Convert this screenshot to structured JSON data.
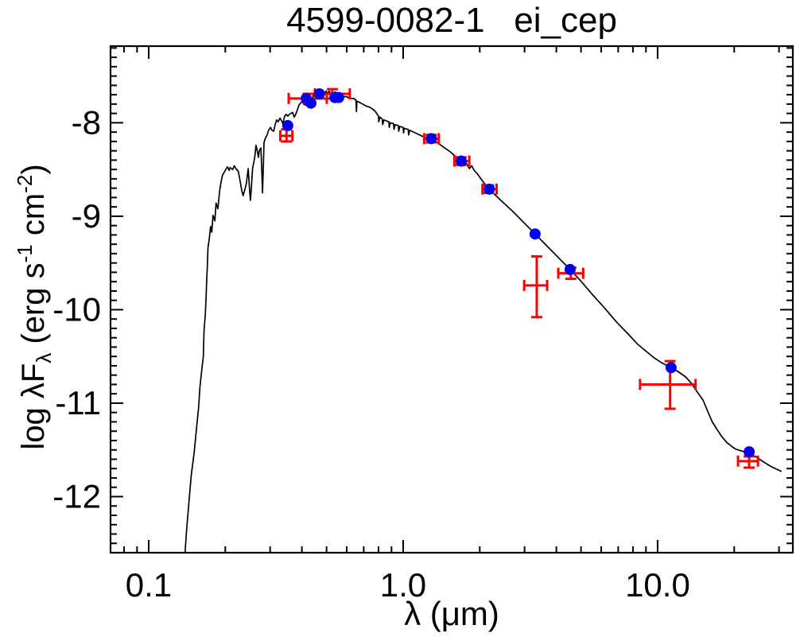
{
  "chart_data": {
    "type": "line+scatter",
    "title": "4599-0082-1   ei_cep",
    "x_axis": {
      "label": "λ (μm)",
      "scale": "log",
      "min": 0.0708,
      "max": 34,
      "major_ticks": [
        {
          "value": 0.1,
          "label": "0.1"
        },
        {
          "value": 1.0,
          "label": "1.0"
        },
        {
          "value": 10.0,
          "label": "10.0"
        }
      ]
    },
    "y_axis": {
      "label": "log λFλ (erg s-1 cm-2)",
      "label_parts": {
        "p1": "log λF",
        "sub": "λ",
        "p2": " (erg s",
        "sup1": "-1",
        "p3": " cm",
        "sup2": "-2",
        "p4": ")"
      },
      "scale": "linear",
      "min": -12.6,
      "max": -7.18,
      "minor_step": 0.1,
      "major_ticks": [
        {
          "value": -8,
          "label": "-8"
        },
        {
          "value": -9,
          "label": "-9"
        },
        {
          "value": -10,
          "label": "-10"
        },
        {
          "value": -11,
          "label": "-11"
        },
        {
          "value": -12,
          "label": "-12"
        }
      ]
    },
    "colors": {
      "model": "#000000",
      "photometry": "#0000ee",
      "errorbars": "#ff0000",
      "frame": "#000000"
    },
    "photometry_points": [
      [
        0.352,
        -8.03
      ],
      [
        0.416,
        -7.74
      ],
      [
        0.434,
        -7.79
      ],
      [
        0.469,
        -7.69
      ],
      [
        0.539,
        -7.73
      ],
      [
        0.558,
        -7.73
      ],
      [
        1.29,
        -8.17
      ],
      [
        1.69,
        -8.41
      ],
      [
        2.18,
        -8.71
      ],
      [
        3.3,
        -9.19
      ],
      [
        4.53,
        -9.57
      ],
      [
        11.3,
        -10.62
      ],
      [
        22.9,
        -11.52
      ]
    ],
    "error_points": [
      {
        "x": 0.348,
        "xlo": 0.329,
        "xhi": 0.367,
        "y": -8.14,
        "ylo": -8.2,
        "yhi": -8.07
      },
      {
        "x": 0.423,
        "xlo": 0.355,
        "xhi": 0.501,
        "y": -7.74,
        "ylo": -7.79,
        "yhi": -7.69
      },
      {
        "x": 0.527,
        "xlo": 0.45,
        "xhi": 0.617,
        "y": -7.69,
        "ylo": -7.74,
        "yhi": -7.64
      },
      {
        "x": 1.29,
        "xlo": 1.21,
        "xhi": 1.38,
        "y": -8.17,
        "ylo": -8.21,
        "yhi": -8.13
      },
      {
        "x": 1.69,
        "xlo": 1.59,
        "xhi": 1.82,
        "y": -8.41,
        "ylo": -8.45,
        "yhi": -8.37
      },
      {
        "x": 2.17,
        "xlo": 2.05,
        "xhi": 2.33,
        "y": -8.71,
        "ylo": -8.75,
        "yhi": -8.67
      },
      {
        "x": 3.35,
        "xlo": 2.99,
        "xhi": 3.68,
        "y": -9.74,
        "ylo": -10.08,
        "yhi": -9.43
      },
      {
        "x": 4.56,
        "xlo": 4.07,
        "xhi": 5.1,
        "y": -9.61,
        "ylo": -9.67,
        "yhi": -9.55
      },
      {
        "x": 11.2,
        "xlo": 8.53,
        "xhi": 14.1,
        "y": -10.8,
        "ylo": -11.06,
        "yhi": -10.55
      },
      {
        "x": 22.9,
        "xlo": 20.7,
        "xhi": 24.8,
        "y": -11.62,
        "ylo": -11.69,
        "yhi": -11.57
      }
    ],
    "model_curve": [
      [
        0.139,
        -12.6
      ],
      [
        0.141,
        -12.35
      ],
      [
        0.144,
        -12.05
      ],
      [
        0.147,
        -11.77
      ],
      [
        0.151,
        -11.52
      ],
      [
        0.154,
        -11.28
      ],
      [
        0.157,
        -11.05
      ],
      [
        0.159,
        -10.83
      ],
      [
        0.162,
        -10.62
      ],
      [
        0.163,
        -10.56
      ],
      [
        0.164,
        -10.5
      ],
      [
        0.165,
        -10.22
      ],
      [
        0.167,
        -10.05
      ],
      [
        0.168,
        -9.88
      ],
      [
        0.169,
        -9.69
      ],
      [
        0.17,
        -9.54
      ],
      [
        0.171,
        -9.34
      ],
      [
        0.173,
        -9.24
      ],
      [
        0.175,
        -9.11
      ],
      [
        0.177,
        -9.17
      ],
      [
        0.179,
        -8.99
      ],
      [
        0.182,
        -9.05
      ],
      [
        0.184,
        -8.86
      ],
      [
        0.187,
        -8.92
      ],
      [
        0.19,
        -8.73
      ],
      [
        0.192,
        -8.65
      ],
      [
        0.195,
        -8.56
      ],
      [
        0.2,
        -8.51
      ],
      [
        0.204,
        -8.47
      ],
      [
        0.207,
        -8.51
      ],
      [
        0.209,
        -8.48
      ],
      [
        0.214,
        -8.5
      ],
      [
        0.217,
        -8.46
      ],
      [
        0.22,
        -8.49
      ],
      [
        0.225,
        -8.52
      ],
      [
        0.229,
        -8.63
      ],
      [
        0.232,
        -8.72
      ],
      [
        0.235,
        -8.78
      ],
      [
        0.239,
        -8.71
      ],
      [
        0.242,
        -8.65
      ],
      [
        0.246,
        -8.49
      ],
      [
        0.249,
        -8.71
      ],
      [
        0.251,
        -8.83
      ],
      [
        0.253,
        -8.71
      ],
      [
        0.256,
        -8.49
      ],
      [
        0.261,
        -8.37
      ],
      [
        0.264,
        -8.24
      ],
      [
        0.268,
        -8.32
      ],
      [
        0.27,
        -8.37
      ],
      [
        0.272,
        -8.3
      ],
      [
        0.276,
        -8.27
      ],
      [
        0.278,
        -8.49
      ],
      [
        0.28,
        -8.75
      ],
      [
        0.282,
        -8.49
      ],
      [
        0.284,
        -8.21
      ],
      [
        0.288,
        -8.16
      ],
      [
        0.292,
        -8.13
      ],
      [
        0.296,
        -8.08
      ],
      [
        0.301,
        -8.05
      ],
      [
        0.305,
        -8.08
      ],
      [
        0.31,
        -8.09
      ],
      [
        0.314,
        -8.02
      ],
      [
        0.318,
        -7.97
      ],
      [
        0.323,
        -7.99
      ],
      [
        0.328,
        -7.95
      ],
      [
        0.333,
        -7.98
      ],
      [
        0.337,
        -8.01
      ],
      [
        0.342,
        -7.93
      ],
      [
        0.347,
        -7.91
      ],
      [
        0.352,
        -7.93
      ],
      [
        0.357,
        -7.91
      ],
      [
        0.362,
        -7.9
      ],
      [
        0.368,
        -7.89
      ],
      [
        0.373,
        -7.94
      ],
      [
        0.378,
        -7.91
      ],
      [
        0.384,
        -7.86
      ],
      [
        0.39,
        -7.81
      ],
      [
        0.395,
        -7.79
      ],
      [
        0.401,
        -7.77
      ],
      [
        0.406,
        -7.8
      ],
      [
        0.413,
        -7.81
      ],
      [
        0.419,
        -7.75
      ],
      [
        0.425,
        -7.69
      ],
      [
        0.43,
        -7.74
      ],
      [
        0.437,
        -7.76
      ],
      [
        0.444,
        -7.7
      ],
      [
        0.45,
        -7.69
      ],
      [
        0.456,
        -7.66
      ],
      [
        0.463,
        -7.69
      ],
      [
        0.47,
        -7.69
      ],
      [
        0.476,
        -7.65
      ],
      [
        0.483,
        -7.67
      ],
      [
        0.491,
        -7.69
      ],
      [
        0.498,
        -7.66
      ],
      [
        0.505,
        -7.69
      ],
      [
        0.512,
        -7.66
      ],
      [
        0.52,
        -7.69
      ],
      [
        0.527,
        -7.68
      ],
      [
        0.535,
        -7.69
      ],
      [
        0.542,
        -7.67
      ],
      [
        0.551,
        -7.69
      ],
      [
        0.558,
        -7.69
      ],
      [
        0.566,
        -7.7
      ],
      [
        0.574,
        -7.7
      ],
      [
        0.587,
        -7.72
      ],
      [
        0.6,
        -7.72
      ],
      [
        0.614,
        -7.74
      ],
      [
        0.627,
        -7.74
      ],
      [
        0.64,
        -7.74
      ],
      [
        0.653,
        -7.76
      ],
      [
        0.655,
        -7.88
      ],
      [
        0.658,
        -7.77
      ],
      [
        0.672,
        -7.78
      ],
      [
        0.693,
        -7.8
      ],
      [
        0.713,
        -7.82
      ],
      [
        0.734,
        -7.83
      ],
      [
        0.755,
        -7.85
      ],
      [
        0.778,
        -7.88
      ],
      [
        0.8,
        -7.93
      ],
      [
        0.802,
        -7.99
      ],
      [
        0.81,
        -7.94
      ],
      [
        0.828,
        -7.96
      ],
      [
        0.831,
        -8.02
      ],
      [
        0.84,
        -7.97
      ],
      [
        0.879,
        -7.99
      ],
      [
        0.882,
        -8.05
      ],
      [
        0.89,
        -8.0
      ],
      [
        0.917,
        -8.01
      ],
      [
        0.921,
        -8.07
      ],
      [
        0.93,
        -8.02
      ],
      [
        0.957,
        -8.03
      ],
      [
        0.961,
        -8.09
      ],
      [
        0.97,
        -8.04
      ],
      [
        1.0,
        -8.05
      ],
      [
        1.004,
        -8.11
      ],
      [
        1.01,
        -8.06
      ],
      [
        1.046,
        -8.07
      ],
      [
        1.051,
        -8.13
      ],
      [
        1.06,
        -8.08
      ],
      [
        1.1,
        -8.1
      ],
      [
        1.14,
        -8.12
      ],
      [
        1.18,
        -8.14
      ],
      [
        1.23,
        -8.16
      ],
      [
        1.286,
        -8.17
      ],
      [
        1.36,
        -8.21
      ],
      [
        1.44,
        -8.26
      ],
      [
        1.53,
        -8.31
      ],
      [
        1.62,
        -8.37
      ],
      [
        1.691,
        -8.41
      ],
      [
        1.74,
        -8.46
      ],
      [
        1.77,
        -8.43
      ],
      [
        1.82,
        -8.49
      ],
      [
        1.86,
        -8.46
      ],
      [
        1.9,
        -8.51
      ],
      [
        1.95,
        -8.54
      ],
      [
        2.02,
        -8.6
      ],
      [
        2.1,
        -8.66
      ],
      [
        2.175,
        -8.71
      ],
      [
        2.42,
        -8.83
      ],
      [
        2.7,
        -8.95
      ],
      [
        3.01,
        -9.08
      ],
      [
        3.3,
        -9.19
      ],
      [
        3.68,
        -9.32
      ],
      [
        4.1,
        -9.45
      ],
      [
        4.53,
        -9.57
      ],
      [
        4.98,
        -9.69
      ],
      [
        5.55,
        -9.84
      ],
      [
        6.18,
        -9.98
      ],
      [
        6.88,
        -10.13
      ],
      [
        7.66,
        -10.26
      ],
      [
        8.35,
        -10.37
      ],
      [
        8.97,
        -10.44
      ],
      [
        9.64,
        -10.51
      ],
      [
        10.4,
        -10.57
      ],
      [
        11.3,
        -10.62
      ],
      [
        12.0,
        -10.66
      ],
      [
        12.9,
        -10.72
      ],
      [
        13.6,
        -10.79
      ],
      [
        14.4,
        -10.89
      ],
      [
        15.1,
        -10.97
      ],
      [
        15.7,
        -11.08
      ],
      [
        16.4,
        -11.2
      ],
      [
        17.2,
        -11.29
      ],
      [
        17.9,
        -11.36
      ],
      [
        18.7,
        -11.42
      ],
      [
        19.5,
        -11.46
      ],
      [
        20.2,
        -11.49
      ],
      [
        21.3,
        -11.51
      ],
      [
        22.5,
        -11.53
      ],
      [
        24.2,
        -11.57
      ],
      [
        26.1,
        -11.63
      ],
      [
        28.0,
        -11.68
      ],
      [
        30.1,
        -11.72
      ],
      [
        30.7,
        -11.73
      ]
    ]
  }
}
